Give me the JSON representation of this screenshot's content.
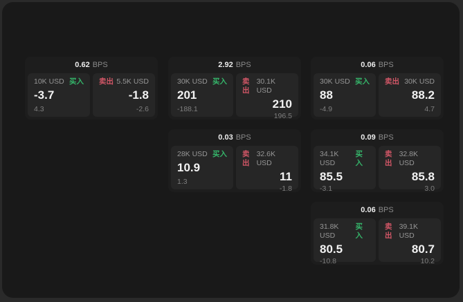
{
  "colors": {
    "background_outer": "#2a2a2a",
    "background_window": "#191919",
    "card_background": "#1d1d1d",
    "panel_background": "#262626",
    "buy_green": "#35b56a",
    "sell_red": "#d05666",
    "primary_text": "#f2f2f2",
    "muted_text": "#8a8a8a"
  },
  "cards": [
    {
      "bps_value": "0.62",
      "bps_unit": "BPS",
      "buy": {
        "size": "10K USD",
        "tag": "买入",
        "price": "-3.7",
        "delta": "4.3"
      },
      "sell": {
        "tag": "卖出",
        "size": "5.5K USD",
        "price": "-1.8",
        "delta": "-2.6"
      }
    },
    {
      "bps_value": "2.92",
      "bps_unit": "BPS",
      "buy": {
        "size": "30K USD",
        "tag": "买入",
        "price": "201",
        "delta": "-188.1"
      },
      "sell": {
        "tag": "卖出",
        "size": "30.1K USD",
        "price": "210",
        "delta": "196.5"
      }
    },
    {
      "bps_value": "0.06",
      "bps_unit": "BPS",
      "buy": {
        "size": "30K USD",
        "tag": "买入",
        "price": "88",
        "delta": "-4.9"
      },
      "sell": {
        "tag": "卖出",
        "size": "30K USD",
        "price": "88.2",
        "delta": "4.7"
      }
    },
    {
      "bps_value": "0.03",
      "bps_unit": "BPS",
      "buy": {
        "size": "28K USD",
        "tag": "买入",
        "price": "10.9",
        "delta": "1.3"
      },
      "sell": {
        "tag": "卖出",
        "size": "32.6K USD",
        "price": "11",
        "delta": "-1.8"
      }
    },
    {
      "bps_value": "0.09",
      "bps_unit": "BPS",
      "buy": {
        "size": "34.1K USD",
        "tag": "买入",
        "price": "85.5",
        "delta": "-3.1"
      },
      "sell": {
        "tag": "卖出",
        "size": "32.8K USD",
        "price": "85.8",
        "delta": "3.0"
      }
    },
    {
      "bps_value": "0.06",
      "bps_unit": "BPS",
      "buy": {
        "size": "31.8K USD",
        "tag": "买入",
        "price": "80.5",
        "delta": "-10.8"
      },
      "sell": {
        "tag": "卖出",
        "size": "39.1K USD",
        "price": "80.7",
        "delta": "10.2"
      }
    }
  ]
}
